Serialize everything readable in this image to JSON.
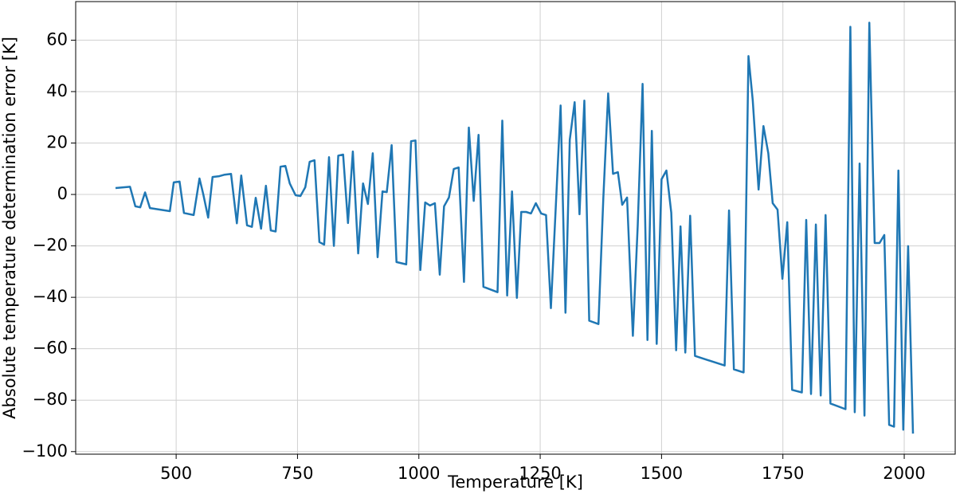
{
  "chart_data": {
    "type": "line",
    "x_label": "Temperature [K]",
    "y_label": "Absolute temperature determination error [K]",
    "xlim": [
      293,
      2105
    ],
    "ylim": [
      -101,
      75
    ],
    "xticks": [
      500,
      750,
      1000,
      1250,
      1500,
      1750,
      2000
    ],
    "yticks": [
      {
        "value": -100,
        "label": "−100"
      },
      {
        "value": -80,
        "label": "−80"
      },
      {
        "value": -60,
        "label": "−60"
      },
      {
        "value": -40,
        "label": "−40"
      },
      {
        "value": -20,
        "label": "−20"
      },
      0,
      20,
      40,
      60
    ],
    "grid": true,
    "x": [
      375,
      405,
      416,
      426,
      436,
      446,
      487,
      495,
      507,
      516,
      536,
      548,
      556,
      566,
      575,
      589,
      600,
      613,
      625,
      634,
      646,
      656,
      664,
      675,
      685,
      695,
      705,
      715,
      725,
      734,
      746,
      756,
      766,
      775,
      785,
      795,
      805,
      815,
      825,
      834,
      844,
      854,
      864,
      875,
      885,
      895,
      905,
      915,
      925,
      934,
      944,
      954,
      974,
      984,
      993,
      1003,
      1013,
      1023,
      1033,
      1043,
      1052,
      1062,
      1072,
      1082,
      1093,
      1103,
      1113,
      1123,
      1133,
      1162,
      1172,
      1182,
      1192,
      1202,
      1211,
      1221,
      1231,
      1241,
      1252,
      1262,
      1272,
      1282,
      1292,
      1302,
      1311,
      1321,
      1331,
      1341,
      1351,
      1370,
      1380,
      1390,
      1400,
      1410,
      1419,
      1429,
      1441,
      1451,
      1461,
      1471,
      1480,
      1490,
      1500,
      1510,
      1520,
      1530,
      1539,
      1549,
      1559,
      1569,
      1630,
      1639,
      1649,
      1669,
      1679,
      1688,
      1700,
      1710,
      1720,
      1729,
      1739,
      1749,
      1759,
      1769,
      1789,
      1798,
      1808,
      1818,
      1828,
      1838,
      1848,
      1879,
      1889,
      1898,
      1908,
      1918,
      1928,
      1939,
      1949,
      1959,
      1969,
      1979,
      1988,
      1998,
      2008,
      2018
    ],
    "series": [
      {
        "name": "error",
        "color": "#1f77b4",
        "values": [
          2.5,
          3,
          -4.6,
          -5,
          0.8,
          -5.3,
          -6.5,
          4.7,
          5,
          -7.2,
          -8,
          6.2,
          0,
          -9,
          6.8,
          7.1,
          7.7,
          8,
          -11.2,
          7.4,
          -12,
          -12.6,
          -1.3,
          -13.3,
          3.4,
          -14,
          -14.4,
          10.8,
          11.1,
          4.3,
          -0.3,
          -0.6,
          2.8,
          12.7,
          13.3,
          -18.5,
          -19.5,
          14.5,
          -20,
          15.1,
          15.5,
          -11.1,
          16.7,
          -22.9,
          4.3,
          -3.7,
          16,
          -24.4,
          1.2,
          0.9,
          19.2,
          -26.3,
          -27.2,
          20.7,
          21,
          -29.4,
          -3.1,
          -4.3,
          -3.4,
          -31.2,
          -4.6,
          -1.2,
          9.9,
          10.5,
          -34,
          26,
          -2.5,
          23.2,
          -35.9,
          -38,
          28.7,
          -39.3,
          1.2,
          -40.2,
          -6.8,
          -6.8,
          -7.4,
          -3.4,
          -7.4,
          -8,
          -44.2,
          -5,
          34.6,
          -46,
          21.3,
          35.9,
          -7.7,
          36.5,
          -49.1,
          -50.4,
          -1.5,
          39.3,
          8,
          8.7,
          -4,
          -1.2,
          -55,
          -12,
          43,
          -56.6,
          24.7,
          -58.1,
          5.9,
          9.3,
          -7.1,
          -60.6,
          -12.4,
          -61.5,
          -8.3,
          -62.8,
          -66.5,
          -6.2,
          -68,
          -69.2,
          53.8,
          36.5,
          1.9,
          26.6,
          16,
          -3.4,
          -5.9,
          -32.8,
          -10.8,
          -76,
          -77,
          -9.9,
          -77.6,
          -11.7,
          -78.2,
          -8,
          -81.3,
          -83.5,
          65.2,
          -84.7,
          12,
          -86,
          66.8,
          -18.9,
          -18.9,
          -15.8,
          -89.6,
          -90.3,
          9.3,
          -91.5,
          -20.1,
          -93
        ]
      }
    ]
  }
}
